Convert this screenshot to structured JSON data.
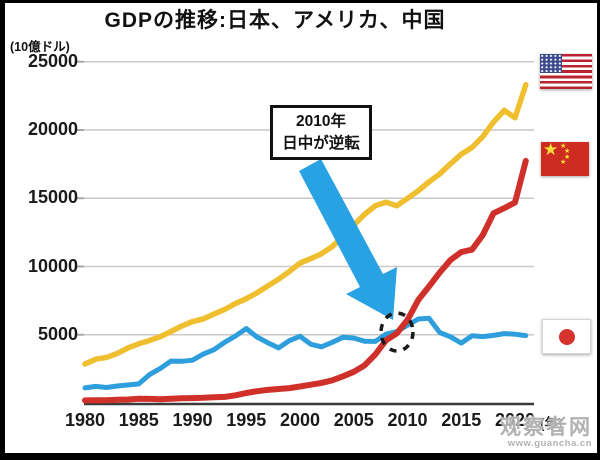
{
  "title": "GDPの推移:日本、アメリカ、中国",
  "axes": {
    "y_unit": "(10億ドル)",
    "x_unit": "(年)"
  },
  "annotation_box": {
    "line1": "2010年",
    "line2": "日中が逆転"
  },
  "watermark": {
    "site_name": "观察者网",
    "site_url": "www.guancha.cn"
  },
  "colors": {
    "usa_line": "#EFBF2F",
    "china_line": "#D0302A",
    "japan_line": "#2E9EDC",
    "arrow": "#29A2E3",
    "grid": "#c9c9c9",
    "axis": "#3a3a3a",
    "callout_border": "#111111"
  },
  "legend_flags": [
    {
      "id": "usa-flag",
      "country": "アメリカ"
    },
    {
      "id": "china-flag",
      "country": "中国"
    },
    {
      "id": "japan-flag",
      "country": "日本"
    }
  ],
  "chart_data": {
    "type": "line",
    "title": "GDPの推移:日本、アメリカ、中国",
    "ylabel": "(10億ドル)",
    "xlabel": "(年)",
    "grid": true,
    "ylim": [
      0,
      26000
    ],
    "yticks": [
      5000,
      10000,
      15000,
      20000,
      25000
    ],
    "xticks": [
      1980,
      1985,
      1990,
      1995,
      2000,
      2005,
      2010,
      2015,
      2020
    ],
    "legend_position": "right-flags",
    "x": [
      1980,
      1981,
      1982,
      1983,
      1984,
      1985,
      1986,
      1987,
      1988,
      1989,
      1990,
      1991,
      1992,
      1993,
      1994,
      1995,
      1996,
      1997,
      1998,
      1999,
      2000,
      2001,
      2002,
      2003,
      2004,
      2005,
      2006,
      2007,
      2008,
      2009,
      2010,
      2011,
      2012,
      2013,
      2014,
      2015,
      2016,
      2017,
      2018,
      2019,
      2020,
      2021
    ],
    "series": [
      {
        "id": "usa",
        "name": "アメリカ",
        "color": "#EFBF2F",
        "values": [
          2857,
          3207,
          3344,
          3634,
          4038,
          4339,
          4580,
          4855,
          5236,
          5642,
          5963,
          6158,
          6520,
          6859,
          7287,
          7640,
          8073,
          8578,
          9063,
          9631,
          10251,
          10582,
          10936,
          11458,
          12214,
          13037,
          13815,
          14452,
          14713,
          14449,
          14992,
          15543,
          16197,
          16785,
          17527,
          18225,
          18715,
          19519,
          20580,
          21433,
          20894,
          23315
        ]
      },
      {
        "id": "japan",
        "name": "日本",
        "color": "#2E9EDC",
        "values": [
          1105,
          1218,
          1134,
          1243,
          1318,
          1399,
          2079,
          2533,
          3071,
          3054,
          3133,
          3584,
          3908,
          4454,
          4907,
          5449,
          4834,
          4415,
          4033,
          4562,
          4888,
          4303,
          4115,
          4446,
          4815,
          4755,
          4530,
          4515,
          5038,
          5231,
          5700,
          6157,
          6203,
          5156,
          4850,
          4390,
          4923,
          4867,
          4955,
          5082,
          5040,
          4941
        ]
      },
      {
        "id": "china",
        "name": "中国",
        "color": "#D0302A",
        "values": [
          191,
          196,
          205,
          231,
          260,
          310,
          301,
          273,
          312,
          348,
          361,
          383,
          427,
          445,
          564,
          734,
          864,
          962,
          1029,
          1094,
          1211,
          1339,
          1471,
          1660,
          1955,
          2286,
          2752,
          3550,
          4594,
          5102,
          6087,
          7552,
          8532,
          9570,
          10476,
          11062,
          11233,
          12310,
          13895,
          14280,
          14688,
          17734
        ]
      }
    ],
    "annotation": {
      "line1": "2010年",
      "line2": "日中が逆転",
      "target_year": 2010
    }
  }
}
